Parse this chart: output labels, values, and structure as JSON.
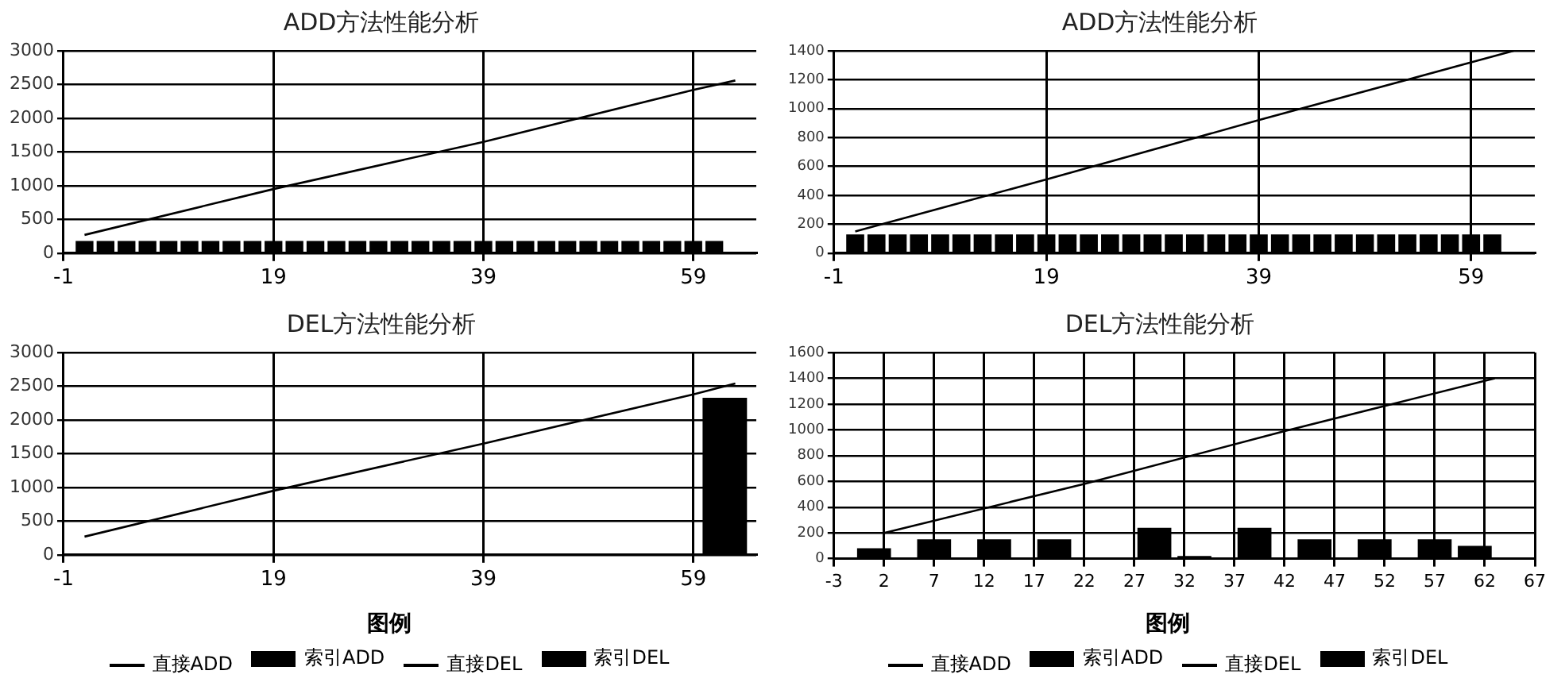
{
  "chart_data": [
    {
      "type": "bar",
      "title": "ADD方法性能分析",
      "xlim": [
        -1,
        65
      ],
      "xticks": [
        -1,
        19,
        39,
        59
      ],
      "ylim": [
        0,
        3000
      ],
      "yticks": [
        0,
        500,
        1000,
        1500,
        2000,
        2500,
        3000
      ],
      "grid": true,
      "legend": "bottom",
      "marker": "none",
      "line_style": "solid",
      "series": [
        {
          "name": "直接ADD",
          "type": "line",
          "color": "#000000",
          "x": [
            1,
            19,
            39,
            59,
            63
          ],
          "values": [
            270,
            950,
            1650,
            2420,
            2560
          ]
        },
        {
          "name": "索引ADD",
          "color": "#000000",
          "x": [
            1,
            3,
            5,
            7,
            9,
            11,
            13,
            15,
            17,
            19,
            21,
            23,
            25,
            27,
            29,
            31,
            33,
            35,
            37,
            39,
            41,
            43,
            45,
            47,
            49,
            51,
            53,
            55,
            57,
            59,
            61
          ],
          "values": [
            180,
            180,
            180,
            180,
            180,
            180,
            180,
            180,
            180,
            180,
            180,
            180,
            180,
            180,
            180,
            180,
            180,
            180,
            180,
            180,
            180,
            180,
            180,
            180,
            180,
            180,
            180,
            180,
            180,
            180,
            180
          ]
        }
      ]
    },
    {
      "type": "bar",
      "title": "ADD方法性能分析",
      "xlim": [
        -1,
        65
      ],
      "xticks": [
        -1,
        19,
        39,
        59
      ],
      "ylim": [
        0,
        1400
      ],
      "yticks": [
        0,
        200,
        400,
        600,
        800,
        1000,
        1200,
        1400
      ],
      "grid": true,
      "legend": "bottom",
      "marker": "none",
      "line_style": "solid",
      "series": [
        {
          "name": "直接ADD",
          "type": "line",
          "color": "#000000",
          "x": [
            1,
            19,
            39,
            59,
            63
          ],
          "values": [
            150,
            510,
            920,
            1320,
            1400
          ]
        },
        {
          "name": "索引ADD",
          "color": "#000000",
          "x": [
            1,
            3,
            5,
            7,
            9,
            11,
            13,
            15,
            17,
            19,
            21,
            23,
            25,
            27,
            29,
            31,
            33,
            35,
            37,
            39,
            41,
            43,
            45,
            47,
            49,
            51,
            53,
            55,
            57,
            59,
            61
          ],
          "values": [
            130,
            130,
            130,
            130,
            130,
            130,
            130,
            130,
            130,
            130,
            130,
            130,
            130,
            130,
            130,
            130,
            130,
            130,
            130,
            130,
            130,
            130,
            130,
            130,
            130,
            130,
            130,
            130,
            130,
            130,
            130
          ]
        }
      ]
    },
    {
      "type": "bar",
      "title": "DEL方法性能分析",
      "xlim": [
        -1,
        65
      ],
      "xticks": [
        -1,
        19,
        39,
        59
      ],
      "ylim": [
        0,
        3000
      ],
      "yticks": [
        0,
        500,
        1000,
        1500,
        2000,
        2500,
        3000
      ],
      "grid": true,
      "legend": "bottom",
      "legend_title": "图例",
      "marker": "none",
      "line_style": "solid",
      "series": [
        {
          "name": "直接DEL",
          "type": "line",
          "color": "#000000",
          "x": [
            1,
            19,
            39,
            59,
            63
          ],
          "values": [
            270,
            950,
            1650,
            2380,
            2540
          ]
        },
        {
          "name": "索引DEL",
          "color": "#000000",
          "x": [
            3,
            9,
            15,
            21,
            27,
            33,
            39,
            45,
            51,
            57,
            62
          ],
          "values": [
            20,
            20,
            20,
            20,
            20,
            20,
            20,
            20,
            20,
            20,
            2330
          ]
        }
      ]
    },
    {
      "type": "bar",
      "title": "DEL方法性能分析",
      "xlim": [
        -3,
        67
      ],
      "xticks": [
        -3,
        2,
        7,
        12,
        17,
        22,
        27,
        32,
        37,
        42,
        47,
        52,
        57,
        62,
        67
      ],
      "ylim": [
        0,
        1600
      ],
      "yticks": [
        0,
        200,
        400,
        600,
        800,
        1000,
        1200,
        1400,
        1600
      ],
      "grid": true,
      "legend": "bottom",
      "legend_title": "图例",
      "marker": "none",
      "line_style": "solid",
      "series": [
        {
          "name": "直接DEL",
          "type": "line",
          "color": "#000000",
          "x": [
            2,
            22,
            42,
            63
          ],
          "values": [
            200,
            580,
            990,
            1400
          ]
        },
        {
          "name": "索引DEL",
          "color": "#000000",
          "x": [
            1,
            7,
            13,
            19,
            29,
            33,
            39,
            45,
            51,
            57,
            61
          ],
          "values": [
            80,
            150,
            150,
            150,
            240,
            20,
            240,
            150,
            150,
            150,
            100
          ]
        }
      ]
    }
  ]
}
